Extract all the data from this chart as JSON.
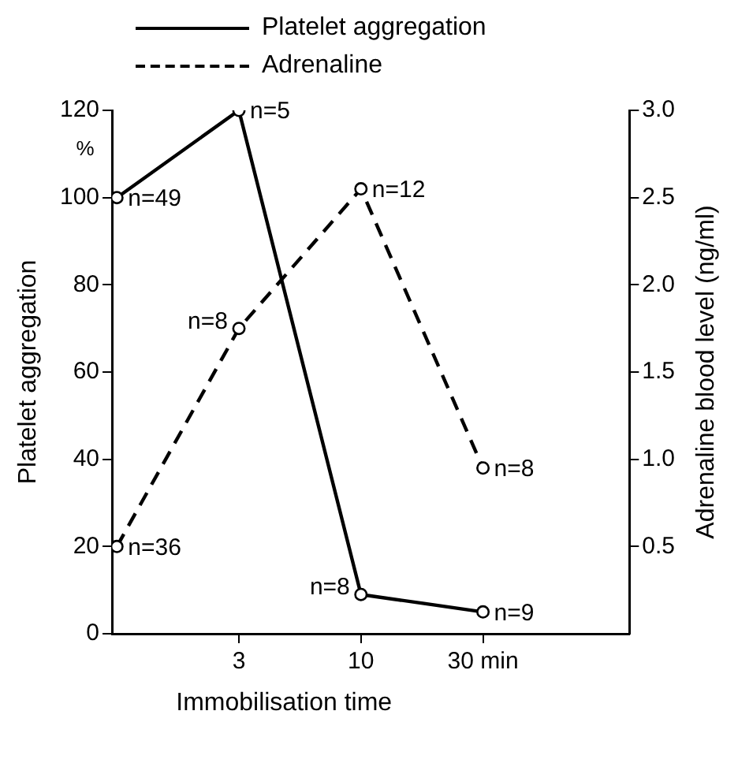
{
  "chart_data": {
    "type": "line",
    "xlabel": "Immobilisation time",
    "ylabel": "Platelet aggregation",
    "y2label": "Adrenaline blood level (ng/ml)",
    "categories": [
      null,
      "3",
      "10",
      "30 min"
    ],
    "series": [
      {
        "name": "Platelet aggregation",
        "color": "#000000",
        "line_style": "solid",
        "values": [
          100,
          120,
          9,
          5
        ]
      },
      {
        "name": "Adrenaline",
        "color": "#000000",
        "line_style": "dashed",
        "axis": "y2",
        "values": [
          0.5,
          1.75,
          2.55,
          0.95
        ]
      }
    ],
    "ylim": [
      0,
      120
    ],
    "yticks": [
      0,
      20,
      40,
      60,
      80,
      100,
      120
    ],
    "y2lim": [
      0,
      3
    ],
    "y2ticks": [
      {
        "value": 0.5,
        "label": "0.5"
      },
      {
        "value": 1,
        "label": "1.0"
      },
      {
        "value": 1.5,
        "label": "1.5"
      },
      {
        "value": 2,
        "label": "2.0"
      },
      {
        "value": 2.5,
        "label": "2.5"
      },
      {
        "value": 3,
        "label": "3.0"
      }
    ],
    "annotations": [
      "%",
      "n=49",
      "n=36",
      "n=8",
      "n=12",
      "n=8",
      {
        "text": "n=5",
        "x": "3",
        "y": 120
      },
      {
        "text": "n=8",
        "x": "10",
        "y": 9
      },
      {
        "text": "n=9",
        "x": "30 min",
        "y": 5
      }
    ],
    "grid": false,
    "legend": "top",
    "marker": "circle"
  }
}
